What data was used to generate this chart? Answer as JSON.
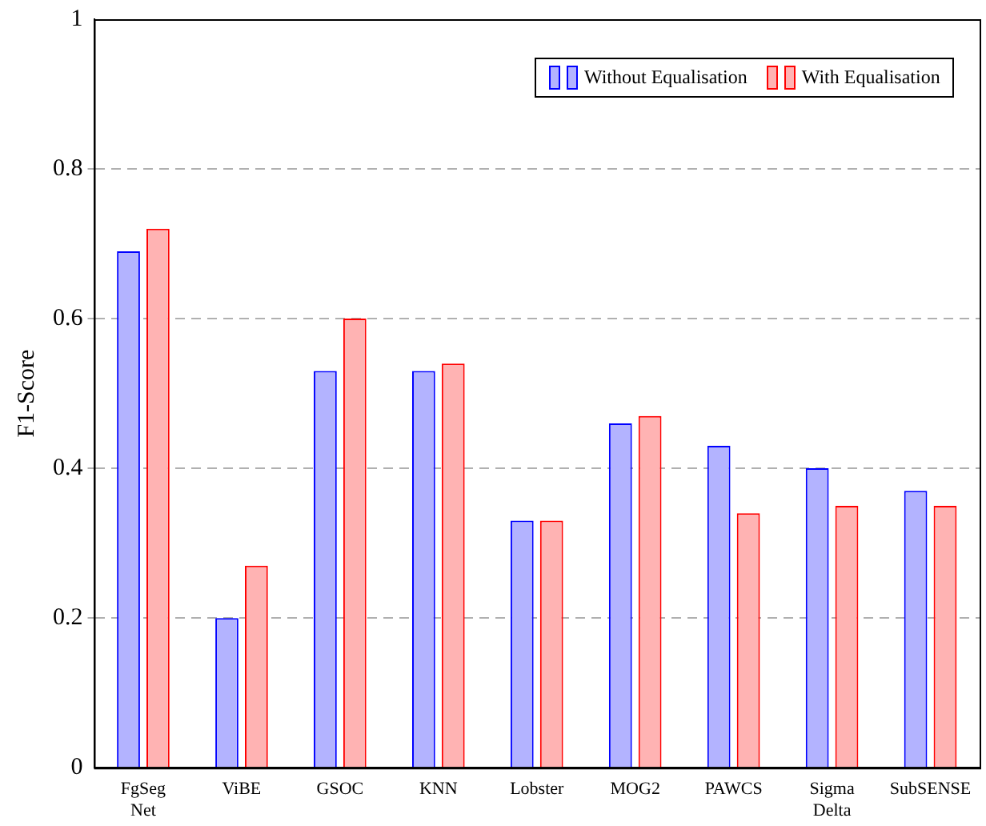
{
  "chart_data": {
    "type": "bar",
    "ylabel": "F1-Score",
    "categories": [
      "FgSeg Net",
      "ViBE",
      "GSOC",
      "KNN",
      "Lobster",
      "MOG2",
      "PAWCS",
      "Sigma Delta",
      "SubSENSE"
    ],
    "series": [
      {
        "name": "Without Equalisation",
        "color": "#b3b3ff",
        "values": [
          0.69,
          0.2,
          0.53,
          0.53,
          0.33,
          0.46,
          0.43,
          0.4,
          0.37
        ]
      },
      {
        "name": "With Equalisation",
        "color": "#ffb3b3",
        "values": [
          0.72,
          0.27,
          0.6,
          0.54,
          0.33,
          0.47,
          0.34,
          0.35,
          0.35
        ]
      }
    ],
    "ylim": [
      0,
      1
    ],
    "yticks": [
      0,
      0.2,
      0.4,
      0.6,
      0.8,
      1
    ],
    "grid": "y",
    "legend": "top right"
  }
}
